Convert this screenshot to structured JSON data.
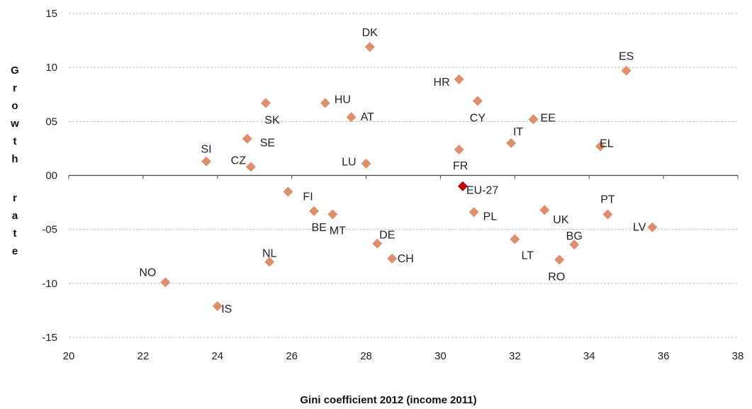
{
  "chart_data": {
    "type": "scatter",
    "title": "",
    "xlabel": "Gini coefficient 2012 (income 2011)",
    "ylabel": "Growth rate",
    "xlim": [
      20,
      38
    ],
    "ylim": [
      -15,
      15
    ],
    "x_ticks": [
      "20",
      "22",
      "24",
      "26",
      "28",
      "30",
      "32",
      "34",
      "36",
      "38"
    ],
    "y_ticks": [
      "15",
      "10",
      "05",
      "00",
      "-05",
      "-10",
      "-15"
    ],
    "marker_color": "#dd8e6b",
    "highlight_color": "#c00000",
    "points": [
      {
        "label": "DK",
        "x": 28.1,
        "y": 11.9
      },
      {
        "label": "ES",
        "x": 35.0,
        "y": 9.7
      },
      {
        "label": "HR",
        "x": 30.5,
        "y": 8.9
      },
      {
        "label": "CY",
        "x": 31.0,
        "y": 6.9
      },
      {
        "label": "HU",
        "x": 26.9,
        "y": 6.7
      },
      {
        "label": "SK",
        "x": 25.3,
        "y": 6.7
      },
      {
        "label": "AT",
        "x": 27.6,
        "y": 5.4
      },
      {
        "label": "EE",
        "x": 32.5,
        "y": 5.2
      },
      {
        "label": "SE",
        "x": 24.8,
        "y": 3.4
      },
      {
        "label": "IT",
        "x": 31.9,
        "y": 3.0
      },
      {
        "label": "EL",
        "x": 34.3,
        "y": 2.7
      },
      {
        "label": "FR",
        "x": 30.5,
        "y": 2.4
      },
      {
        "label": "SI",
        "x": 23.7,
        "y": 1.3
      },
      {
        "label": "LU",
        "x": 28.0,
        "y": 1.1
      },
      {
        "label": "CZ",
        "x": 24.9,
        "y": 0.8
      },
      {
        "label": "EU-27",
        "x": 30.6,
        "y": -1.0,
        "highlight": true
      },
      {
        "label": "FI",
        "x": 25.9,
        "y": -1.5
      },
      {
        "label": "UK",
        "x": 32.8,
        "y": -3.2
      },
      {
        "label": "BE",
        "x": 26.6,
        "y": -3.3
      },
      {
        "label": "PL",
        "x": 30.9,
        "y": -3.4
      },
      {
        "label": "MT",
        "x": 27.1,
        "y": -3.6
      },
      {
        "label": "PT",
        "x": 34.5,
        "y": -3.6
      },
      {
        "label": "LV",
        "x": 35.7,
        "y": -4.8
      },
      {
        "label": "LT",
        "x": 32.0,
        "y": -5.9
      },
      {
        "label": "DE",
        "x": 28.3,
        "y": -6.3
      },
      {
        "label": "BG",
        "x": 33.6,
        "y": -6.4
      },
      {
        "label": "CH",
        "x": 28.7,
        "y": -7.7
      },
      {
        "label": "RO",
        "x": 33.2,
        "y": -7.8
      },
      {
        "label": "NL",
        "x": 25.4,
        "y": -8.0
      },
      {
        "label": "NO",
        "x": 22.6,
        "y": -9.9
      },
      {
        "label": "IS",
        "x": 24.0,
        "y": -12.1
      }
    ]
  }
}
